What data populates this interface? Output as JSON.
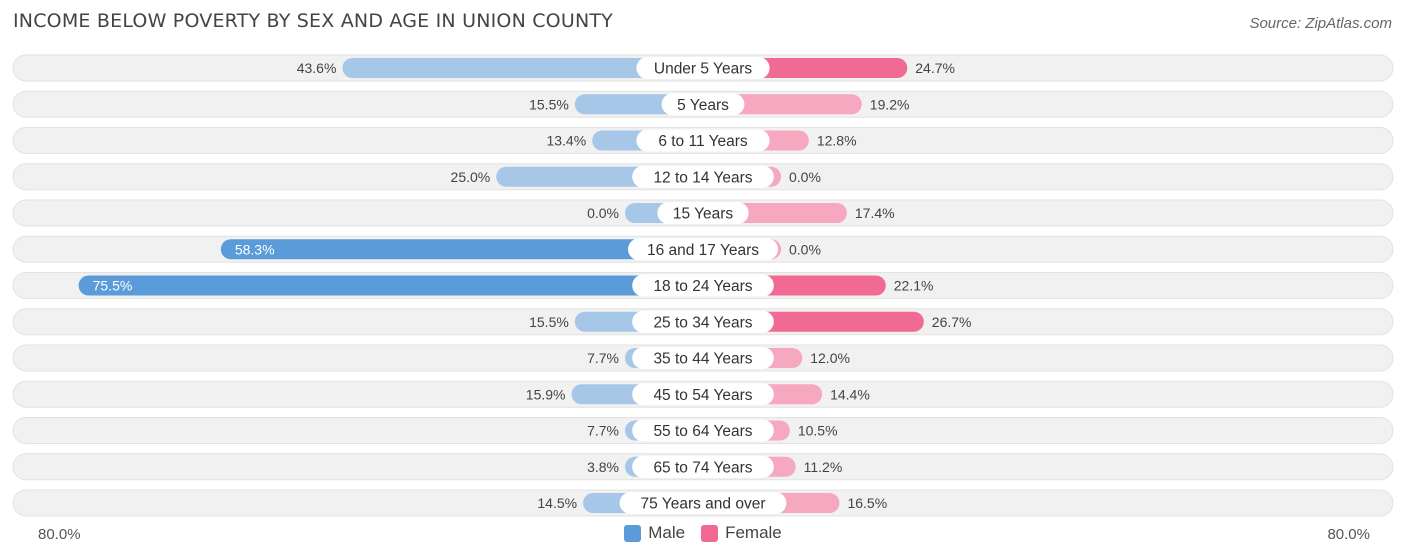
{
  "title": "INCOME BELOW POVERTY BY SEX AND AGE IN UNION COUNTY",
  "source": "Source: ZipAtlas.com",
  "legend": {
    "male_label": "Male",
    "female_label": "Female"
  },
  "axis": {
    "left_label": "80.0%",
    "right_label": "80.0%"
  },
  "colors": {
    "male": "#5b9bd9",
    "male_light": "#a7c7e8",
    "female": "#f06a94",
    "female_light": "#f6a8c0",
    "row_bg": "#f1f1f1"
  },
  "chart_data": {
    "type": "bar",
    "orientation": "diverging-horizontal",
    "title": "INCOME BELOW POVERTY BY SEX AND AGE IN UNION COUNTY",
    "categories": [
      "Under 5 Years",
      "5 Years",
      "6 to 11 Years",
      "12 to 14 Years",
      "15 Years",
      "16 and 17 Years",
      "18 to 24 Years",
      "25 to 34 Years",
      "35 to 44 Years",
      "45 to 54 Years",
      "55 to 64 Years",
      "65 to 74 Years",
      "75 Years and over"
    ],
    "series": [
      {
        "name": "Male",
        "values": [
          43.6,
          15.5,
          13.4,
          25.0,
          0.0,
          58.3,
          75.5,
          15.5,
          7.7,
          15.9,
          7.7,
          3.8,
          14.5
        ]
      },
      {
        "name": "Female",
        "values": [
          24.7,
          19.2,
          12.8,
          0.0,
          17.4,
          0.0,
          22.1,
          26.7,
          12.0,
          14.4,
          10.5,
          11.2,
          16.5
        ]
      }
    ],
    "value_labels_male": [
      "43.6%",
      "15.5%",
      "13.4%",
      "25.0%",
      "0.0%",
      "58.3%",
      "75.5%",
      "15.5%",
      "7.7%",
      "15.9%",
      "7.7%",
      "3.8%",
      "14.5%"
    ],
    "value_labels_female": [
      "24.7%",
      "19.2%",
      "12.8%",
      "0.0%",
      "17.4%",
      "0.0%",
      "22.1%",
      "26.7%",
      "12.0%",
      "14.4%",
      "10.5%",
      "11.2%",
      "16.5%"
    ],
    "xlim": [
      -80,
      80
    ],
    "legend_position": "bottom-center",
    "grid": false
  }
}
